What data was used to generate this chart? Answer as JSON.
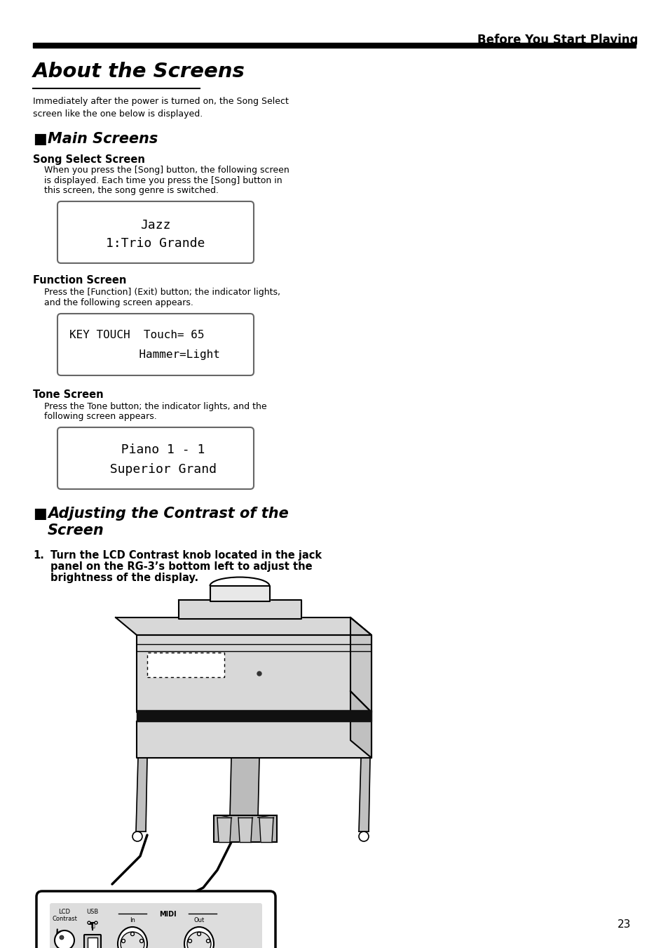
{
  "page_num": "23",
  "header_text": "Before You Start Playing",
  "main_title": "About the Screens",
  "intro_text": "Immediately after the power is turned on, the Song Select\nscreen like the one below is displayed.",
  "section1_marker": "■",
  "section1_label": "Main Screens",
  "subsection1_title": "Song Select Screen",
  "subsection1_body_line1": "    When you press the [Song] button, the following screen",
  "subsection1_body_line2": "    is displayed. Each time you press the [Song] button in",
  "subsection1_body_line3": "    this screen, the song genre is switched.",
  "lcd1_line1": "Jazz",
  "lcd1_line2": "1:Trio Grande",
  "subsection2_title": "Function Screen",
  "subsection2_body_line1": "    Press the [Function] (Exit) button; the indicator lights,",
  "subsection2_body_line2": "    and the following screen appears.",
  "lcd2_line1": "KEY TOUCH  Touch= 65",
  "lcd2_line2": "       Hammer=Light",
  "subsection3_title": "Tone Screen",
  "subsection3_body_line1": "    Press the Tone button; the indicator lights, and the",
  "subsection3_body_line2": "    following screen appears.",
  "lcd3_line1": "  Piano 1 - 1",
  "lcd3_line2": "  Superior Grand",
  "section2_marker": "■",
  "section2_label_line1": "Adjusting the Contrast of the",
  "section2_label_line2": "Screen",
  "step1_label": "1.",
  "step1_line1": "Turn the LCD Contrast knob located in the jack",
  "step1_line2": "panel on the RG-3’s bottom left to adjust the",
  "step1_line3": "brightness of the display.",
  "panel_lcd_label": "LCD\nContrast",
  "panel_usb_label": "USB",
  "panel_midi_label": "MIDI",
  "panel_in_label": "In",
  "panel_out_label": "Out",
  "bg_color": "#ffffff",
  "text_color": "#000000",
  "lcd_border": "#666666",
  "panel_fill": "#dddddd",
  "piano_fill": "#d8d8d8",
  "piano_dark": "#888888"
}
